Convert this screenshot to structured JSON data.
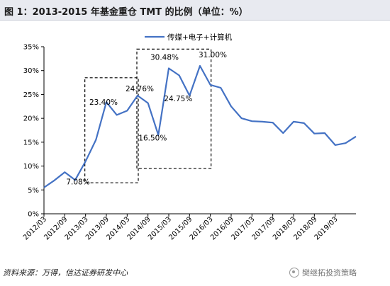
{
  "title": "图 1：2013-2015 年基金重仓 TMT 的比例（单位：%）",
  "source": "资料来源：万得，信达证券研发中心",
  "watermark": "樊继拓投资策略",
  "chart_data": {
    "type": "line",
    "title": "图 1：2013-2015 年基金重仓 TMT 的比例（单位：%）",
    "xlabel": "",
    "ylabel": "",
    "ylim": [
      0,
      35
    ],
    "yticks": [
      "0%",
      "5%",
      "10%",
      "15%",
      "20%",
      "25%",
      "30%",
      "35%"
    ],
    "grid": false,
    "legend_position": "top-right",
    "color": "#4472c4",
    "x": [
      "2012/03",
      "2012/06",
      "2012/09",
      "2012/12",
      "2013/03",
      "2013/06",
      "2013/09",
      "2013/12",
      "2014/03",
      "2014/06",
      "2014/09",
      "2014/12",
      "2015/03",
      "2015/06",
      "2015/09",
      "2015/12",
      "2016/03",
      "2016/06",
      "2016/09",
      "2016/12",
      "2017/03",
      "2017/06",
      "2017/09",
      "2017/12",
      "2018/03",
      "2018/06",
      "2018/09",
      "2018/12",
      "2019/03",
      "2019/06",
      "2019/09"
    ],
    "x_tick_labels": [
      "2012/03",
      "2012/09",
      "2013/03",
      "2013/09",
      "2014/03",
      "2014/09",
      "2015/03",
      "2015/09",
      "2016/03",
      "2016/09",
      "2017/03",
      "2017/09",
      "2018/03",
      "2018/09",
      "2019/03"
    ],
    "series": [
      {
        "name": "传媒+电子+计算机",
        "values": [
          5.5,
          7.0,
          8.7,
          7.08,
          11.0,
          15.5,
          23.4,
          20.7,
          21.6,
          24.76,
          23.2,
          16.5,
          30.48,
          29.0,
          24.75,
          31.0,
          27.0,
          26.4,
          22.5,
          20.0,
          19.4,
          19.3,
          19.1,
          16.9,
          19.3,
          19.0,
          16.8,
          16.9,
          14.4,
          14.8,
          16.2
        ]
      }
    ],
    "annotations": [
      {
        "text": "23.40%",
        "x": "2013/09",
        "y": 23.4
      },
      {
        "text": "7.08%",
        "x": "2012/12",
        "y": 7.08
      },
      {
        "text": "24.76%",
        "x": "2014/06",
        "y": 24.76
      },
      {
        "text": "30.48%",
        "x": "2015/03",
        "y": 30.48
      },
      {
        "text": "16.50%",
        "x": "2014/12",
        "y": 16.5
      },
      {
        "text": "31.00%",
        "x": "2015/12",
        "y": 31.0
      },
      {
        "text": "24.75%",
        "x": "2015/09",
        "y": 24.75
      }
    ],
    "highlight_boxes": [
      {
        "x_from": "2013/03",
        "x_to": "2014/06",
        "y_from": 6.5,
        "y_to": 28.5
      },
      {
        "x_from": "2014/06",
        "x_to": "2016/03",
        "y_from": 9.5,
        "y_to": 34.5
      }
    ]
  }
}
